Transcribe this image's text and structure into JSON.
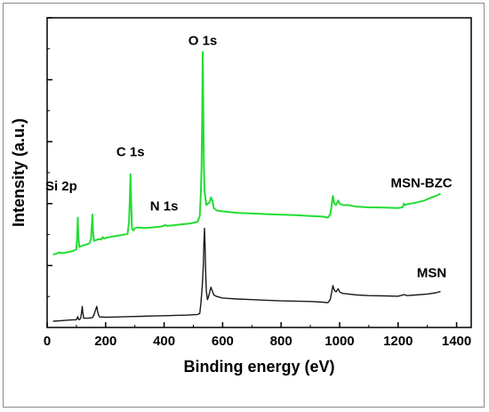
{
  "chart_data": {
    "type": "line",
    "xlabel": "Binding energy (eV)",
    "ylabel": "Intensity (a.u.)",
    "xlim": [
      0,
      1450
    ],
    "ylim": [
      0,
      100
    ],
    "x_ticks": [
      0,
      200,
      400,
      600,
      800,
      1000,
      1200,
      1400
    ],
    "y_ticks_labeled": false,
    "grid": false,
    "legend": "none",
    "annotations": [
      {
        "text": "O 1s",
        "x": 532,
        "y": 89
      },
      {
        "text": "C 1s",
        "x": 285,
        "y": 53
      },
      {
        "text": "Si 2p",
        "x": 103,
        "y": 42
      },
      {
        "text": "N 1s",
        "x": 400,
        "y": 36
      },
      {
        "text": "MSN-BZC",
        "x": 1280,
        "y": 43
      },
      {
        "text": "MSN",
        "x": 1315,
        "y": 14
      }
    ],
    "series": [
      {
        "name": "MSN-BZC",
        "color": "#22dd33",
        "points": [
          [
            20,
            23.5
          ],
          [
            30,
            23.8
          ],
          [
            40,
            24.2
          ],
          [
            55,
            24.0
          ],
          [
            70,
            24.3
          ],
          [
            85,
            24.6
          ],
          [
            95,
            25.0
          ],
          [
            100,
            25.2
          ],
          [
            103,
            30.0
          ],
          [
            105,
            35.5
          ],
          [
            107,
            29.0
          ],
          [
            110,
            26.0
          ],
          [
            120,
            26.4
          ],
          [
            135,
            26.8
          ],
          [
            145,
            27.2
          ],
          [
            150,
            28.5
          ],
          [
            153,
            33.0
          ],
          [
            155,
            36.5
          ],
          [
            157,
            31.0
          ],
          [
            160,
            28.0
          ],
          [
            170,
            28.3
          ],
          [
            180,
            28.6
          ],
          [
            185,
            28.4
          ],
          [
            190,
            29.2
          ],
          [
            195,
            28.7
          ],
          [
            200,
            28.9
          ],
          [
            210,
            29.1
          ],
          [
            220,
            29.3
          ],
          [
            240,
            29.6
          ],
          [
            260,
            29.9
          ],
          [
            275,
            30.2
          ],
          [
            280,
            34.0
          ],
          [
            283,
            42.0
          ],
          [
            285,
            49.5
          ],
          [
            287,
            42.0
          ],
          [
            290,
            32.0
          ],
          [
            295,
            31.3
          ],
          [
            300,
            32.0
          ],
          [
            310,
            32.3
          ],
          [
            330,
            32.1
          ],
          [
            350,
            32.2
          ],
          [
            370,
            32.4
          ],
          [
            390,
            32.6
          ],
          [
            400,
            32.9
          ],
          [
            405,
            33.1
          ],
          [
            410,
            32.8
          ],
          [
            430,
            33.0
          ],
          [
            450,
            33.2
          ],
          [
            470,
            33.4
          ],
          [
            490,
            33.6
          ],
          [
            505,
            33.9
          ],
          [
            515,
            34.2
          ],
          [
            522,
            36.0
          ],
          [
            526,
            44.0
          ],
          [
            528,
            52.0
          ],
          [
            530,
            68.0
          ],
          [
            532,
            89.0
          ],
          [
            534,
            70.0
          ],
          [
            536,
            52.0
          ],
          [
            538,
            44.0
          ],
          [
            541,
            42.0
          ],
          [
            544,
            39.5
          ],
          [
            550,
            40.0
          ],
          [
            556,
            40.5
          ],
          [
            560,
            42.0
          ],
          [
            565,
            41.0
          ],
          [
            570,
            38.5
          ],
          [
            580,
            37.8
          ],
          [
            600,
            37.5
          ],
          [
            650,
            37.0
          ],
          [
            700,
            36.8
          ],
          [
            750,
            36.6
          ],
          [
            800,
            36.4
          ],
          [
            850,
            36.3
          ],
          [
            900,
            36.0
          ],
          [
            940,
            35.8
          ],
          [
            960,
            35.5
          ],
          [
            968,
            36.5
          ],
          [
            972,
            39.0
          ],
          [
            977,
            42.5
          ],
          [
            982,
            40.0
          ],
          [
            988,
            39.5
          ],
          [
            995,
            41.0
          ],
          [
            1000,
            40.0
          ],
          [
            1010,
            39.5
          ],
          [
            1030,
            39.5
          ],
          [
            1060,
            39.0
          ],
          [
            1100,
            38.8
          ],
          [
            1150,
            38.7
          ],
          [
            1200,
            38.6
          ],
          [
            1215,
            38.8
          ],
          [
            1220,
            40.0
          ],
          [
            1225,
            39.5
          ],
          [
            1230,
            39.8
          ],
          [
            1260,
            40.3
          ],
          [
            1290,
            41.0
          ],
          [
            1310,
            41.8
          ],
          [
            1330,
            42.5
          ],
          [
            1345,
            43.2
          ]
        ]
      },
      {
        "name": "MSN",
        "color": "#1a1a1a",
        "points": [
          [
            20,
            2.0
          ],
          [
            50,
            2.2
          ],
          [
            80,
            2.4
          ],
          [
            100,
            2.5
          ],
          [
            105,
            3.5
          ],
          [
            107,
            2.7
          ],
          [
            110,
            2.5
          ],
          [
            115,
            3.0
          ],
          [
            118,
            5.0
          ],
          [
            120,
            6.8
          ],
          [
            122,
            5.0
          ],
          [
            125,
            3.0
          ],
          [
            140,
            3.0
          ],
          [
            155,
            3.2
          ],
          [
            160,
            4.0
          ],
          [
            165,
            5.5
          ],
          [
            170,
            6.8
          ],
          [
            173,
            5.0
          ],
          [
            176,
            4.0
          ],
          [
            180,
            3.4
          ],
          [
            200,
            3.3
          ],
          [
            240,
            3.4
          ],
          [
            280,
            3.5
          ],
          [
            320,
            3.6
          ],
          [
            360,
            3.7
          ],
          [
            400,
            3.8
          ],
          [
            440,
            3.9
          ],
          [
            480,
            4.0
          ],
          [
            500,
            4.1
          ],
          [
            515,
            4.2
          ],
          [
            522,
            4.5
          ],
          [
            526,
            8.0
          ],
          [
            530,
            13.0
          ],
          [
            534,
            20.0
          ],
          [
            536,
            27.0
          ],
          [
            538,
            32.0
          ],
          [
            540,
            27.0
          ],
          [
            542,
            18.0
          ],
          [
            544,
            12.0
          ],
          [
            548,
            9.0
          ],
          [
            552,
            10.0
          ],
          [
            556,
            11.5
          ],
          [
            560,
            13.0
          ],
          [
            564,
            12.0
          ],
          [
            570,
            10.5
          ],
          [
            580,
            10.0
          ],
          [
            600,
            9.5
          ],
          [
            650,
            9.2
          ],
          [
            700,
            9.0
          ],
          [
            750,
            8.8
          ],
          [
            800,
            8.6
          ],
          [
            850,
            8.5
          ],
          [
            900,
            8.4
          ],
          [
            940,
            8.2
          ],
          [
            960,
            8.0
          ],
          [
            968,
            9.0
          ],
          [
            972,
            11.0
          ],
          [
            977,
            13.5
          ],
          [
            982,
            12.0
          ],
          [
            988,
            11.5
          ],
          [
            995,
            12.5
          ],
          [
            1000,
            11.5
          ],
          [
            1010,
            11.0
          ],
          [
            1030,
            10.8
          ],
          [
            1060,
            10.5
          ],
          [
            1100,
            10.3
          ],
          [
            1150,
            10.2
          ],
          [
            1200,
            10.1
          ],
          [
            1220,
            10.6
          ],
          [
            1230,
            10.3
          ],
          [
            1260,
            10.5
          ],
          [
            1300,
            10.8
          ],
          [
            1330,
            11.2
          ],
          [
            1345,
            11.6
          ]
        ]
      }
    ]
  }
}
